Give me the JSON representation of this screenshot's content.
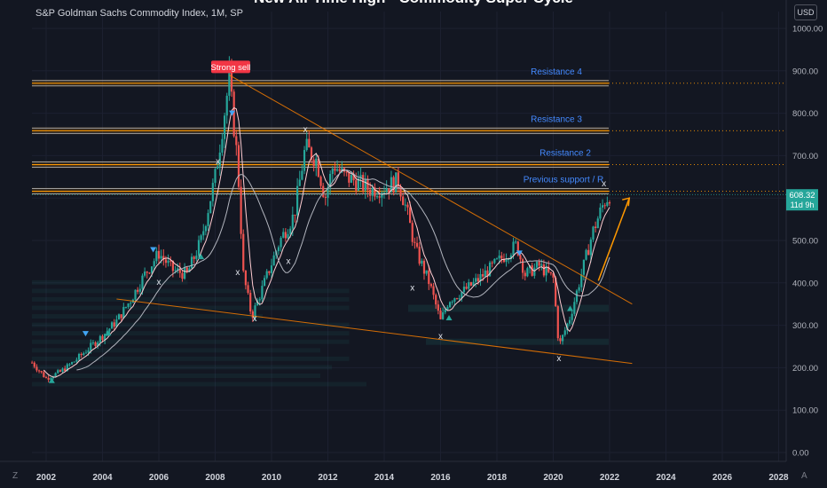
{
  "header": {
    "title": "New All-Time High - Commodity Super Cycle",
    "symbol": "S&P Goldman Sachs Commodity Index, 1M, SP",
    "currency": "USD",
    "corner_left": "Z",
    "corner_right": "A"
  },
  "colors": {
    "background": "#131722",
    "up": "#26a69a",
    "down": "#ef5350",
    "resistance": "#ff9800",
    "label_blue": "#2962ff",
    "trendline": "#f57c00",
    "ma_fast": "#ffcdd2",
    "ma_slow": "#b2b5be",
    "arrow": "#ff9800",
    "strong_sell": "#f23645",
    "price_tag": "#26a69a"
  },
  "chart_data": {
    "type": "candlestick",
    "title": "New All-Time High - Commodity Super Cycle",
    "x_axis_years": [
      "2002",
      "2004",
      "2006",
      "2008",
      "2010",
      "2012",
      "2014",
      "2016",
      "2018",
      "2020",
      "2022",
      "2024",
      "2026",
      "2028"
    ],
    "x_range": [
      2001.4,
      2028.3
    ],
    "y_ticks": [
      "0.00",
      "100.00",
      "200.00",
      "300.00",
      "400.00",
      "500.00",
      "600.00",
      "700.00",
      "800.00",
      "900.00",
      "1000.00"
    ],
    "y_range": [
      0,
      1000
    ],
    "resistance_levels": [
      {
        "label": "Resistance 4",
        "value": 870.73,
        "tag": "870.73"
      },
      {
        "label": "Resistance 3",
        "value": 758.75,
        "tag": "758.75"
      },
      {
        "label": "Resistance 2",
        "value": 678.78,
        "tag": "678.78"
      },
      {
        "label": "Previous support / R",
        "value": 615.99,
        "tag": "615.99"
      }
    ],
    "last_price": {
      "value": 608.32,
      "label": "608.32",
      "countdown": "11d 9h"
    },
    "signal_label": "Strong sell",
    "signal_at": {
      "x": 2008.55,
      "y": 905
    },
    "x_marks": [
      {
        "x": 2008.1,
        "y": 680
      },
      {
        "x": 2008.8,
        "y": 418
      },
      {
        "x": 2006.0,
        "y": 395
      },
      {
        "x": 2009.4,
        "y": 310
      },
      {
        "x": 2010.6,
        "y": 445
      },
      {
        "x": 2011.2,
        "y": 755
      },
      {
        "x": 2015.0,
        "y": 382
      },
      {
        "x": 2016.0,
        "y": 268
      },
      {
        "x": 2020.2,
        "y": 216
      },
      {
        "x": 2021.8,
        "y": 628
      }
    ],
    "trendlines": [
      {
        "from": [
          2008.5,
          890
        ],
        "to": [
          2022.8,
          350
        ]
      },
      {
        "from": [
          2004.5,
          362
        ],
        "to": [
          2022.8,
          210
        ]
      }
    ],
    "projection_arrow": {
      "from": [
        2021.6,
        405
      ],
      "to": [
        2022.7,
        600
      ]
    },
    "anchors": [
      [
        2001.5,
        212
      ],
      [
        2002.0,
        175
      ],
      [
        2002.5,
        190
      ],
      [
        2003.0,
        215
      ],
      [
        2003.5,
        245
      ],
      [
        2004.0,
        275
      ],
      [
        2004.5,
        310
      ],
      [
        2005.0,
        360
      ],
      [
        2005.5,
        420
      ],
      [
        2006.0,
        470
      ],
      [
        2006.5,
        430
      ],
      [
        2007.0,
        420
      ],
      [
        2007.5,
        500
      ],
      [
        2008.0,
        650
      ],
      [
        2008.5,
        880
      ],
      [
        2008.8,
        680
      ],
      [
        2009.0,
        420
      ],
      [
        2009.3,
        320
      ],
      [
        2009.8,
        410
      ],
      [
        2010.3,
        500
      ],
      [
        2010.8,
        560
      ],
      [
        2011.2,
        720
      ],
      [
        2011.6,
        690
      ],
      [
        2011.9,
        600
      ],
      [
        2012.2,
        680
      ],
      [
        2012.6,
        650
      ],
      [
        2013.0,
        640
      ],
      [
        2013.5,
        620
      ],
      [
        2014.0,
        625
      ],
      [
        2014.5,
        640
      ],
      [
        2014.8,
        570
      ],
      [
        2015.1,
        480
      ],
      [
        2015.6,
        400
      ],
      [
        2016.0,
        310
      ],
      [
        2016.3,
        360
      ],
      [
        2016.8,
        380
      ],
      [
        2017.2,
        400
      ],
      [
        2017.7,
        430
      ],
      [
        2018.2,
        460
      ],
      [
        2018.7,
        490
      ],
      [
        2019.0,
        420
      ],
      [
        2019.5,
        440
      ],
      [
        2020.0,
        410
      ],
      [
        2020.2,
        250
      ],
      [
        2020.6,
        320
      ],
      [
        2021.0,
        420
      ],
      [
        2021.4,
        520
      ],
      [
        2021.8,
        590
      ],
      [
        2022.0,
        608
      ]
    ]
  }
}
